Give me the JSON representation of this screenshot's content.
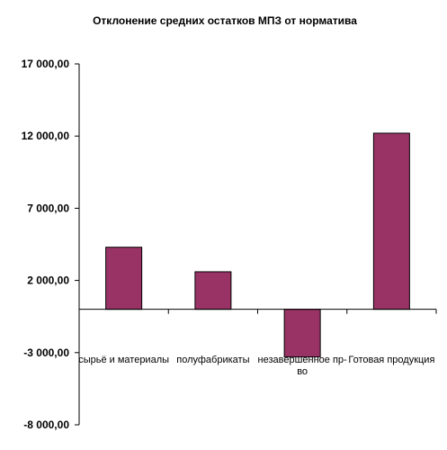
{
  "chart_data": {
    "type": "bar",
    "title": "Отклонение средних остатков МПЗ от норматива",
    "xlabel": "",
    "ylabel": "",
    "categories": [
      "сырьё и материалы",
      "полуфабрикаты",
      "незавершенное пр-во",
      "Готовая продукция"
    ],
    "category_label_lines": [
      [
        "сырьё и материалы"
      ],
      [
        "полуфабрикаты"
      ],
      [
        "незавершенное пр-",
        "во"
      ],
      [
        "Готовая продукция"
      ]
    ],
    "values": [
      4300,
      2600,
      -3300,
      12200
    ],
    "ylim": [
      -8000,
      17000
    ],
    "yticks": [
      17000,
      12000,
      7000,
      2000,
      -3000,
      -8000
    ],
    "ytick_labels": [
      "17 000,00",
      "12 000,00",
      "7 000,00",
      "2 000,00",
      "-3 000,00",
      "-8 000,00"
    ],
    "grid": false,
    "legend": "none",
    "bar_color": "#993366",
    "axis_color": "#000000"
  }
}
